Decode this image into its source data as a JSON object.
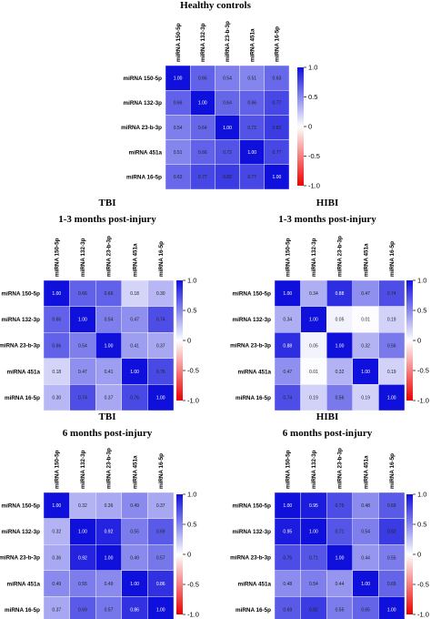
{
  "colors": {
    "positive": "#1010dd",
    "zero": "#ffffff",
    "negative": "#ee0000"
  },
  "chart_data": [
    {
      "type": "heatmap",
      "title": "Healthy controls",
      "subtitle": "",
      "labels": [
        "miRNA 150-5p",
        "miRNA 132-3p",
        "miRNA 23-b-3p",
        "miRNA 451a",
        "miRNA 16-5p"
      ],
      "values": [
        [
          1.0,
          0.66,
          0.54,
          0.51,
          0.63
        ],
        [
          0.66,
          1.0,
          0.64,
          0.66,
          0.77
        ],
        [
          0.54,
          0.64,
          1.0,
          0.72,
          0.82
        ],
        [
          0.51,
          0.66,
          0.72,
          1.0,
          0.77
        ],
        [
          0.63,
          0.77,
          0.82,
          0.77,
          1.0
        ]
      ],
      "value_labels": [
        [
          "1.00",
          "0.66",
          "0.54",
          "0.51",
          "0.63"
        ],
        [
          "0.66",
          "1.00",
          "0.64",
          "0.66",
          "0.77"
        ],
        [
          "0.54",
          "0.64",
          "1.00",
          "0.72",
          "0.82"
        ],
        [
          "0.51",
          "0.66",
          "0.72",
          "1.00",
          "0.77"
        ],
        [
          "0.63",
          "0.77",
          "0.82",
          "0.77",
          "1.00"
        ]
      ],
      "colorbar_range": [
        -1.0,
        1.0
      ],
      "colorbar_ticks": [
        "1.0",
        "0.5",
        "0",
        "-0.5",
        "-1.0"
      ]
    },
    {
      "type": "heatmap",
      "title": "TBI",
      "subtitle": "1-3 months post-injury",
      "labels": [
        "miRNA 150-5p",
        "miRNA 132-3p",
        "miRNA 23-b-3p",
        "miRNA 451a",
        "miRNA 16-5p"
      ],
      "values": [
        [
          1.0,
          0.66,
          0.66,
          0.18,
          0.3
        ],
        [
          0.66,
          1.0,
          0.54,
          0.47,
          0.74
        ],
        [
          0.66,
          0.54,
          1.0,
          0.41,
          0.37
        ],
        [
          0.18,
          0.47,
          0.41,
          1.0,
          0.76
        ],
        [
          0.3,
          0.74,
          0.37,
          0.76,
          1.0
        ]
      ],
      "value_labels": [
        [
          "1.00",
          "0.66",
          "0.66",
          "0.18",
          "0.30"
        ],
        [
          "0.66",
          "1.00",
          "0.54",
          "0.47",
          "0.74"
        ],
        [
          "0.66",
          "0.54",
          "1.00",
          "0.41",
          "0.37"
        ],
        [
          "0.18",
          "0.47",
          "0.41",
          "1.00",
          "0.76"
        ],
        [
          "0.30",
          "0.74",
          "0.37",
          "0.76",
          "1.00"
        ]
      ],
      "colorbar_range": [
        -1.0,
        1.0
      ],
      "colorbar_ticks": [
        "1.0",
        "0.5",
        "0",
        "-0.5",
        "-1.0"
      ]
    },
    {
      "type": "heatmap",
      "title": "HIBI",
      "subtitle": "1-3 months post-injury",
      "labels": [
        "miRNA 150-5p",
        "miRNA 132-3p",
        "miRNA 23-b-3p",
        "miRNA 451a",
        "miRNA 16-5p"
      ],
      "values": [
        [
          1.0,
          0.34,
          0.88,
          0.47,
          0.74
        ],
        [
          0.34,
          1.0,
          0.05,
          0.01,
          0.19
        ],
        [
          0.88,
          0.05,
          1.0,
          0.32,
          0.56
        ],
        [
          0.47,
          0.01,
          0.32,
          1.0,
          0.19
        ],
        [
          0.74,
          0.19,
          0.56,
          0.19,
          1.0
        ]
      ],
      "value_labels": [
        [
          "1.00",
          "0.34",
          "0.88",
          "0.47",
          "0.74"
        ],
        [
          "0.34",
          "1.00",
          "0.05",
          "0.01",
          "0.19"
        ],
        [
          "0.88",
          "0.05",
          "1.00",
          "0.32",
          "0.56"
        ],
        [
          "0.47",
          "0.01",
          "0.32",
          "1.00",
          "0.19"
        ],
        [
          "0.74",
          "0.19",
          "0.56",
          "0.19",
          "1.00"
        ]
      ],
      "colorbar_range": [
        -1.0,
        1.0
      ],
      "colorbar_ticks": [
        "1.0",
        "0.5",
        "0",
        "-0.5",
        "-1.0"
      ]
    },
    {
      "type": "heatmap",
      "title": "TBI",
      "subtitle": "6 months post-injury",
      "labels": [
        "miRNA 150-5p",
        "miRNA 132-3p",
        "miRNA 23-b-3p",
        "miRNA 451a",
        "miRNA 16-5p"
      ],
      "values": [
        [
          1.0,
          0.32,
          0.36,
          0.49,
          0.37
        ],
        [
          0.32,
          1.0,
          0.92,
          0.55,
          0.69
        ],
        [
          0.36,
          0.92,
          1.0,
          0.49,
          0.57
        ],
        [
          0.49,
          0.55,
          0.49,
          1.0,
          0.86
        ],
        [
          0.37,
          0.69,
          0.57,
          0.86,
          1.0
        ]
      ],
      "value_labels": [
        [
          "1.00",
          "0.32",
          "0.36",
          "0.49",
          "0.37"
        ],
        [
          "0.32",
          "1.00",
          "0.92",
          "0.55",
          "0.69"
        ],
        [
          "0.36",
          "0.92",
          "1.00",
          "0.49",
          "0.57"
        ],
        [
          "0.49",
          "0.55",
          "0.49",
          "1.00",
          "0.86"
        ],
        [
          "0.37",
          "0.69",
          "0.57",
          "0.86",
          "1.00"
        ]
      ],
      "colorbar_range": [
        -1.0,
        1.0
      ],
      "colorbar_ticks": [
        "1.0",
        "0.5",
        "0",
        "-0.5",
        "-1.0"
      ]
    },
    {
      "type": "heatmap",
      "title": "HIBI",
      "subtitle": "6 months post-injury",
      "labels": [
        "miRNA 150-5p",
        "miRNA 132-3p",
        "miRNA 23-b-3p",
        "miRNA 451a",
        "miRNA 16-5p"
      ],
      "values": [
        [
          1.0,
          0.95,
          0.75,
          0.48,
          0.69
        ],
        [
          0.95,
          1.0,
          0.71,
          0.54,
          0.82
        ],
        [
          0.75,
          0.71,
          1.0,
          0.44,
          0.55
        ],
        [
          0.48,
          0.54,
          0.44,
          1.0,
          0.65
        ],
        [
          0.69,
          0.82,
          0.55,
          0.65,
          1.0
        ]
      ],
      "value_labels": [
        [
          "1.00",
          "0.95",
          "0.75",
          "0.48",
          "0.69"
        ],
        [
          "0.95",
          "1.00",
          "0.71",
          "0.54",
          "0.82"
        ],
        [
          "0.75",
          "0.71",
          "1.00",
          "0.44",
          "0.55"
        ],
        [
          "0.48",
          "0.54",
          "0.44",
          "1.00",
          "0.65"
        ],
        [
          "0.69",
          "0.82",
          "0.55",
          "0.65",
          "1.00"
        ]
      ],
      "colorbar_range": [
        -1.0,
        1.0
      ],
      "colorbar_ticks": [
        "1.0",
        "0.5",
        "0",
        "-0.5",
        "-1.0"
      ]
    }
  ]
}
